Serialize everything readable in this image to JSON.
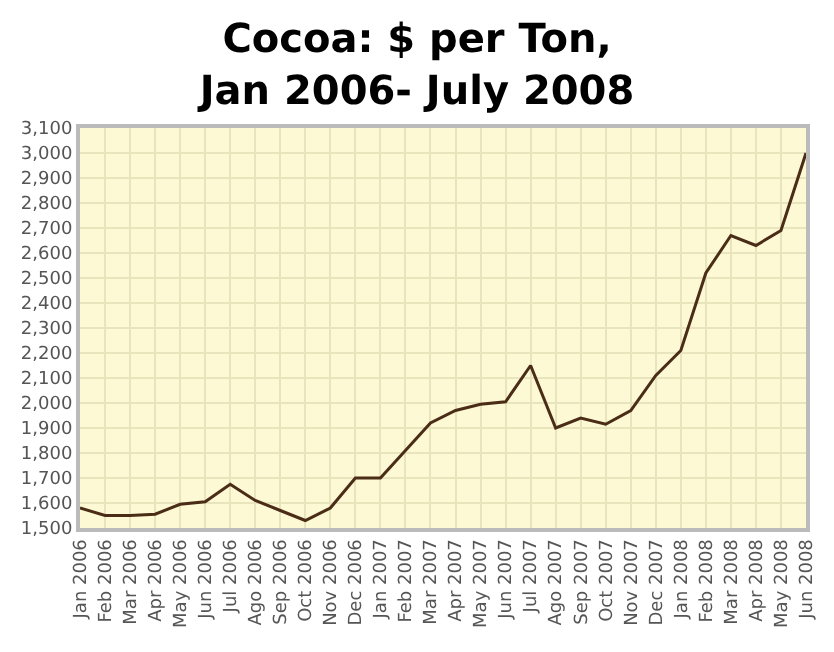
{
  "chart_data": {
    "type": "line",
    "title": "Cocoa: $ per Ton,\nJan 2006- July 2008",
    "categories": [
      "Jan 2006",
      "Feb 2006",
      "Mar 2006",
      "Apr 2006",
      "May 2006",
      "Jun 2006",
      "Jul 2006",
      "Ago 2006",
      "Sep 2006",
      "Oct 2006",
      "Nov 2006",
      "Dec 2006",
      "Jan 2007",
      "Feb 2007",
      "Mar 2007",
      "Apr 2007",
      "May 2007",
      "Jun 2007",
      "Jul 2007",
      "Ago 2007",
      "Sep 2007",
      "Oct 2007",
      "Nov 2007",
      "Dec 2007",
      "Jan 2008",
      "Feb 2008",
      "Mar 2008",
      "Apr 2008",
      "May 2008",
      "Jun 2008"
    ],
    "values": [
      1580,
      1550,
      1550,
      1555,
      1595,
      1605,
      1675,
      1610,
      1570,
      1530,
      1580,
      1700,
      1700,
      1810,
      1920,
      1970,
      1995,
      2005,
      2150,
      1900,
      1940,
      1915,
      1970,
      2110,
      2210,
      2520,
      2670,
      2630,
      2690,
      3000
    ],
    "color": "#4a2c17",
    "ylim": [
      1500,
      3100
    ],
    "yticks": [
      {
        "value": 1500,
        "label": "1,500"
      },
      {
        "value": 1600,
        "label": "1,600"
      },
      {
        "value": 1700,
        "label": "1,700"
      },
      {
        "value": 1800,
        "label": "1,800"
      },
      {
        "value": 1900,
        "label": "1,900"
      },
      {
        "value": 2000,
        "label": "2,000"
      },
      {
        "value": 2100,
        "label": "2,100"
      },
      {
        "value": 2200,
        "label": "2,200"
      },
      {
        "value": 2300,
        "label": "2,300"
      },
      {
        "value": 2400,
        "label": "2,400"
      },
      {
        "value": 2500,
        "label": "2,500"
      },
      {
        "value": 2600,
        "label": "2,600"
      },
      {
        "value": 2700,
        "label": "2,700"
      },
      {
        "value": 2800,
        "label": "2,800"
      },
      {
        "value": 2900,
        "label": "2,900"
      },
      {
        "value": 3000,
        "label": "3,000"
      },
      {
        "value": 3100,
        "label": "3,100"
      }
    ],
    "grid": true,
    "marker": "none",
    "line_style": "solid"
  }
}
